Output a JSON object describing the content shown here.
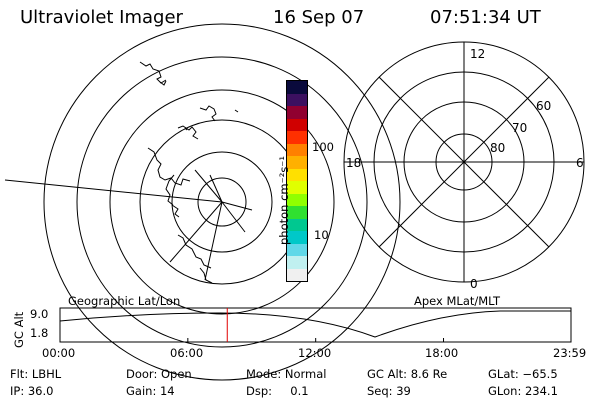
{
  "header": {
    "instrument": "Ultraviolet Imager",
    "date": "16 Sep 07",
    "time": "07:51:34 UT"
  },
  "left_panel": {
    "label": "Geographic Lat/Lon"
  },
  "right_panel": {
    "label": "Apex MLat/MLT",
    "mlt_labels": {
      "top": "12",
      "bottom": "0",
      "left": "18",
      "right": "6"
    },
    "lat_labels": [
      "60",
      "70",
      "80"
    ]
  },
  "colorbar": {
    "unit_label": "photon cm⁻²s⁻¹",
    "ticks": [
      "100",
      "10"
    ],
    "colors": [
      "#0a0a3c",
      "#3c1060",
      "#900030",
      "#d00000",
      "#ff3000",
      "#ff8000",
      "#ffb000",
      "#ffe000",
      "#e0ff00",
      "#90ff00",
      "#30e030",
      "#00c890",
      "#00c8c8",
      "#60d8e8",
      "#c0f0f0",
      "#f0f0f0"
    ]
  },
  "altitude_plot": {
    "ylabel": "GC Alt",
    "yticks": [
      "9.0",
      "1.8"
    ],
    "xticks": [
      "00:00",
      "06:00",
      "12:00",
      "18:00",
      "23:59"
    ],
    "marker_time": "07:51",
    "marker_color": "#e00000"
  },
  "footer": {
    "flt": "Flt: LBHL",
    "ip": "IP: 36.0",
    "door": "Door: Open",
    "gain": "Gain: 14",
    "mode": "Mode: Normal",
    "dsp": "Dsp:     0.1",
    "gcalt": "GC Alt: 8.6 Re",
    "seq": "Seq: 39",
    "glat": "GLat: −65.5",
    "glon": "GLon: 234.1"
  }
}
